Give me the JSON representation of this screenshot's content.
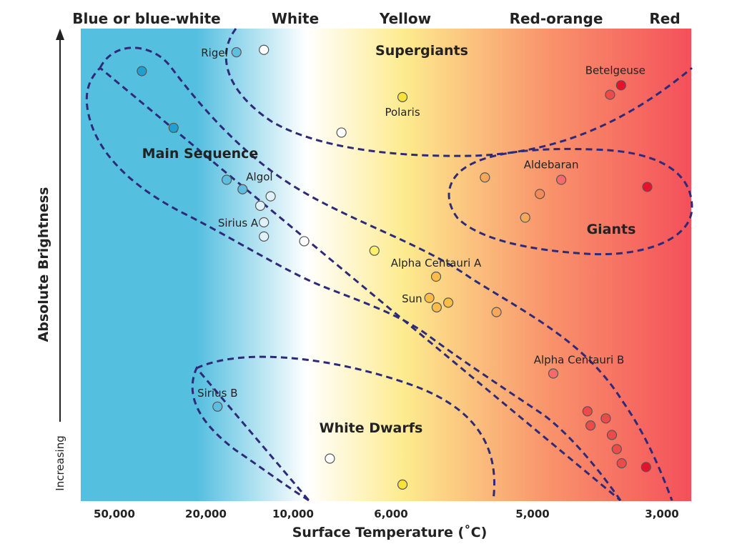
{
  "chart_data": {
    "type": "scatter",
    "title": "",
    "xlabel": "Surface Temperature (˚C)",
    "ylabel": "Absolute Brightness",
    "y_direction_label": "Increasing",
    "x_ticks": [
      "50,000",
      "20,000",
      "10,000",
      "6,000",
      "5,000",
      "3,000"
    ],
    "color_bands": [
      {
        "label": "Blue or blue-white",
        "color": "#55bfe0"
      },
      {
        "label": "White",
        "color": "#ffffff"
      },
      {
        "label": "Yellow",
        "color": "#fdeb8e"
      },
      {
        "label": "Red-orange",
        "color": "#f9956c"
      },
      {
        "label": "Red",
        "color": "#f4505a"
      }
    ],
    "regions": [
      {
        "name": "Main Sequence"
      },
      {
        "name": "Supergiants"
      },
      {
        "name": "Giants"
      },
      {
        "name": "White Dwarfs"
      }
    ],
    "stars": [
      {
        "name": "Rigel",
        "x": 0.255,
        "y": 0.95,
        "color": "#5fbde0"
      },
      {
        "name": "",
        "x": 0.3,
        "y": 0.955,
        "color": "#ffffff"
      },
      {
        "name": "",
        "x": 0.1,
        "y": 0.91,
        "color": "#1ea1d2"
      },
      {
        "name": "",
        "x": 0.152,
        "y": 0.79,
        "color": "#1ea1d2"
      },
      {
        "name": "Betelgeuse",
        "x": 0.885,
        "y": 0.88,
        "color": "#e8102a"
      },
      {
        "name": "",
        "x": 0.867,
        "y": 0.86,
        "color": "#ee4a4a"
      },
      {
        "name": "Polaris",
        "x": 0.527,
        "y": 0.855,
        "color": "#f9e23a"
      },
      {
        "name": "",
        "x": 0.427,
        "y": 0.78,
        "color": "#ffffff"
      },
      {
        "name": "Algol",
        "x": 0.265,
        "y": 0.66,
        "color": "#5fbde0"
      },
      {
        "name": "",
        "x": 0.239,
        "y": 0.68,
        "color": "#5fbde0"
      },
      {
        "name": "",
        "x": 0.311,
        "y": 0.645,
        "color": "#dff2fa"
      },
      {
        "name": "",
        "x": 0.294,
        "y": 0.625,
        "color": "#dff2fa"
      },
      {
        "name": "Sirius A",
        "x": 0.3,
        "y": 0.59,
        "color": "#dff2fa"
      },
      {
        "name": "",
        "x": 0.3,
        "y": 0.56,
        "color": "#dff2fa"
      },
      {
        "name": "",
        "x": 0.366,
        "y": 0.55,
        "color": "#ffffff"
      },
      {
        "name": "",
        "x": 0.481,
        "y": 0.53,
        "color": "#fdf06a"
      },
      {
        "name": "Aldebaran",
        "x": 0.787,
        "y": 0.68,
        "color": "#f56a6a"
      },
      {
        "name": "",
        "x": 0.662,
        "y": 0.685,
        "color": "#f8a85a"
      },
      {
        "name": "",
        "x": 0.752,
        "y": 0.65,
        "color": "#f48a5a"
      },
      {
        "name": "",
        "x": 0.728,
        "y": 0.6,
        "color": "#f8a85a"
      },
      {
        "name": "",
        "x": 0.928,
        "y": 0.665,
        "color": "#e8102a"
      },
      {
        "name": "Alpha Centauri A",
        "x": 0.582,
        "y": 0.475,
        "color": "#fbbd48"
      },
      {
        "name": "Sun",
        "x": 0.571,
        "y": 0.43,
        "color": "#fbbd48"
      },
      {
        "name": "",
        "x": 0.583,
        "y": 0.41,
        "color": "#fbbd48"
      },
      {
        "name": "",
        "x": 0.602,
        "y": 0.42,
        "color": "#fbbd48"
      },
      {
        "name": "",
        "x": 0.681,
        "y": 0.4,
        "color": "#f8a85a"
      },
      {
        "name": "Alpha Centauri B",
        "x": 0.774,
        "y": 0.27,
        "color": "#f56a6a"
      },
      {
        "name": "Sirius B",
        "x": 0.224,
        "y": 0.2,
        "color": "#5fbde0"
      },
      {
        "name": "",
        "x": 0.83,
        "y": 0.19,
        "color": "#ee4a4a"
      },
      {
        "name": "",
        "x": 0.835,
        "y": 0.16,
        "color": "#ee4a4a"
      },
      {
        "name": "",
        "x": 0.86,
        "y": 0.175,
        "color": "#ee4a4a"
      },
      {
        "name": "",
        "x": 0.87,
        "y": 0.14,
        "color": "#ee4a4a"
      },
      {
        "name": "",
        "x": 0.878,
        "y": 0.11,
        "color": "#ee4a4a"
      },
      {
        "name": "",
        "x": 0.886,
        "y": 0.08,
        "color": "#ee4a4a"
      },
      {
        "name": "",
        "x": 0.926,
        "y": 0.072,
        "color": "#e8102a"
      },
      {
        "name": "",
        "x": 0.408,
        "y": 0.09,
        "color": "#ffffff"
      },
      {
        "name": "",
        "x": 0.527,
        "y": 0.035,
        "color": "#f9e23a"
      }
    ],
    "x_range": [
      0,
      1
    ],
    "y_range": [
      0,
      1
    ],
    "x_scale": "relative position (temperature decreasing left to right)",
    "y_scale": "relative brightness (increasing upward)",
    "grid": false,
    "legend": "none"
  }
}
